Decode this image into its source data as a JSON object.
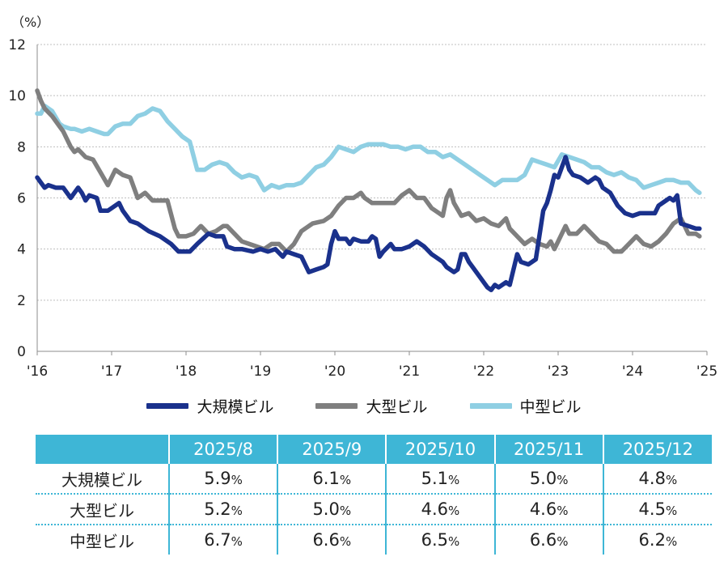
{
  "chart_data": {
    "type": "line",
    "y_unit_label": "（%）",
    "ylim": [
      0,
      12
    ],
    "y_ticks": [
      0,
      2,
      4,
      6,
      8,
      10,
      12
    ],
    "x_ticks": [
      "'16",
      "'17",
      "'18",
      "'19",
      "'20",
      "'21",
      "'22",
      "'23",
      "'24",
      "'25"
    ],
    "x_range": [
      0,
      9
    ],
    "grid": "horizontal dotted",
    "legend_position": "bottom",
    "series": [
      {
        "name": "大規模ビル",
        "color": "#1a318c",
        "points": [
          [
            0.0,
            6.8
          ],
          [
            0.05,
            6.6
          ],
          [
            0.1,
            6.4
          ],
          [
            0.15,
            6.5
          ],
          [
            0.25,
            6.4
          ],
          [
            0.35,
            6.4
          ],
          [
            0.45,
            6.0
          ],
          [
            0.55,
            6.4
          ],
          [
            0.6,
            6.2
          ],
          [
            0.65,
            5.9
          ],
          [
            0.7,
            6.1
          ],
          [
            0.8,
            6.0
          ],
          [
            0.85,
            5.5
          ],
          [
            0.95,
            5.5
          ],
          [
            1.0,
            5.6
          ],
          [
            1.1,
            5.8
          ],
          [
            1.15,
            5.5
          ],
          [
            1.25,
            5.1
          ],
          [
            1.35,
            5.0
          ],
          [
            1.5,
            4.7
          ],
          [
            1.65,
            4.5
          ],
          [
            1.8,
            4.2
          ],
          [
            1.9,
            3.9
          ],
          [
            2.05,
            3.9
          ],
          [
            2.15,
            4.2
          ],
          [
            2.3,
            4.6
          ],
          [
            2.4,
            4.5
          ],
          [
            2.5,
            4.5
          ],
          [
            2.55,
            4.1
          ],
          [
            2.65,
            4.0
          ],
          [
            2.75,
            4.0
          ],
          [
            2.9,
            3.9
          ],
          [
            3.0,
            4.0
          ],
          [
            3.1,
            3.9
          ],
          [
            3.2,
            4.0
          ],
          [
            3.3,
            3.7
          ],
          [
            3.35,
            3.9
          ],
          [
            3.45,
            3.8
          ],
          [
            3.55,
            3.7
          ],
          [
            3.65,
            3.1
          ],
          [
            3.75,
            3.2
          ],
          [
            3.85,
            3.3
          ],
          [
            3.9,
            3.4
          ],
          [
            3.95,
            4.2
          ],
          [
            4.0,
            4.7
          ],
          [
            4.05,
            4.4
          ],
          [
            4.15,
            4.4
          ],
          [
            4.2,
            4.2
          ],
          [
            4.25,
            4.4
          ],
          [
            4.35,
            4.3
          ],
          [
            4.45,
            4.3
          ],
          [
            4.5,
            4.5
          ],
          [
            4.55,
            4.4
          ],
          [
            4.6,
            3.7
          ],
          [
            4.65,
            3.9
          ],
          [
            4.75,
            4.2
          ],
          [
            4.8,
            4.0
          ],
          [
            4.9,
            4.0
          ],
          [
            5.0,
            4.1
          ],
          [
            5.1,
            4.3
          ],
          [
            5.2,
            4.1
          ],
          [
            5.3,
            3.8
          ],
          [
            5.35,
            3.7
          ],
          [
            5.45,
            3.5
          ],
          [
            5.5,
            3.3
          ],
          [
            5.6,
            3.1
          ],
          [
            5.65,
            3.2
          ],
          [
            5.7,
            3.8
          ],
          [
            5.75,
            3.8
          ],
          [
            5.8,
            3.5
          ],
          [
            5.85,
            3.3
          ],
          [
            5.95,
            2.9
          ],
          [
            6.05,
            2.5
          ],
          [
            6.1,
            2.4
          ],
          [
            6.15,
            2.6
          ],
          [
            6.2,
            2.5
          ],
          [
            6.3,
            2.7
          ],
          [
            6.35,
            2.6
          ],
          [
            6.45,
            3.8
          ],
          [
            6.5,
            3.5
          ],
          [
            6.6,
            3.4
          ],
          [
            6.7,
            3.6
          ],
          [
            6.8,
            5.5
          ],
          [
            6.85,
            5.8
          ],
          [
            6.9,
            6.3
          ],
          [
            6.95,
            6.9
          ],
          [
            7.0,
            6.8
          ],
          [
            7.05,
            7.2
          ],
          [
            7.1,
            7.6
          ],
          [
            7.15,
            7.1
          ],
          [
            7.2,
            6.9
          ],
          [
            7.3,
            6.8
          ],
          [
            7.4,
            6.6
          ],
          [
            7.5,
            6.8
          ],
          [
            7.55,
            6.7
          ],
          [
            7.6,
            6.4
          ],
          [
            7.7,
            6.2
          ],
          [
            7.8,
            5.7
          ],
          [
            7.9,
            5.4
          ],
          [
            8.0,
            5.3
          ],
          [
            8.1,
            5.4
          ],
          [
            8.2,
            5.4
          ],
          [
            8.3,
            5.4
          ],
          [
            8.35,
            5.7
          ],
          [
            8.45,
            5.9
          ],
          [
            8.5,
            6.0
          ],
          [
            8.55,
            5.9
          ],
          [
            8.6,
            6.1
          ],
          [
            8.65,
            5.0
          ],
          [
            8.75,
            4.9
          ],
          [
            8.85,
            4.8
          ],
          [
            8.9,
            4.8
          ]
        ]
      },
      {
        "name": "大型ビル",
        "color": "#7f7f7f",
        "points": [
          [
            0.0,
            10.2
          ],
          [
            0.05,
            9.8
          ],
          [
            0.1,
            9.5
          ],
          [
            0.2,
            9.2
          ],
          [
            0.3,
            8.8
          ],
          [
            0.35,
            8.6
          ],
          [
            0.45,
            8.0
          ],
          [
            0.5,
            7.8
          ],
          [
            0.55,
            7.9
          ],
          [
            0.65,
            7.6
          ],
          [
            0.75,
            7.5
          ],
          [
            0.85,
            7.0
          ],
          [
            0.95,
            6.5
          ],
          [
            1.0,
            6.8
          ],
          [
            1.05,
            7.1
          ],
          [
            1.15,
            6.9
          ],
          [
            1.25,
            6.8
          ],
          [
            1.35,
            6.0
          ],
          [
            1.45,
            6.2
          ],
          [
            1.55,
            5.9
          ],
          [
            1.65,
            5.9
          ],
          [
            1.75,
            5.9
          ],
          [
            1.85,
            4.8
          ],
          [
            1.9,
            4.5
          ],
          [
            2.0,
            4.5
          ],
          [
            2.1,
            4.6
          ],
          [
            2.2,
            4.9
          ],
          [
            2.3,
            4.6
          ],
          [
            2.4,
            4.7
          ],
          [
            2.5,
            4.9
          ],
          [
            2.55,
            4.9
          ],
          [
            2.65,
            4.6
          ],
          [
            2.75,
            4.3
          ],
          [
            2.85,
            4.2
          ],
          [
            2.95,
            4.1
          ],
          [
            3.05,
            4.0
          ],
          [
            3.15,
            4.2
          ],
          [
            3.25,
            4.2
          ],
          [
            3.35,
            3.9
          ],
          [
            3.45,
            4.2
          ],
          [
            3.55,
            4.7
          ],
          [
            3.65,
            4.9
          ],
          [
            3.7,
            5.0
          ],
          [
            3.85,
            5.1
          ],
          [
            3.95,
            5.3
          ],
          [
            4.05,
            5.7
          ],
          [
            4.15,
            6.0
          ],
          [
            4.25,
            6.0
          ],
          [
            4.35,
            6.2
          ],
          [
            4.4,
            6.0
          ],
          [
            4.5,
            5.8
          ],
          [
            4.6,
            5.8
          ],
          [
            4.7,
            5.8
          ],
          [
            4.8,
            5.8
          ],
          [
            4.9,
            6.1
          ],
          [
            5.0,
            6.3
          ],
          [
            5.1,
            6.0
          ],
          [
            5.2,
            6.0
          ],
          [
            5.3,
            5.6
          ],
          [
            5.4,
            5.4
          ],
          [
            5.45,
            5.3
          ],
          [
            5.5,
            6.0
          ],
          [
            5.55,
            6.3
          ],
          [
            5.6,
            5.8
          ],
          [
            5.7,
            5.3
          ],
          [
            5.8,
            5.4
          ],
          [
            5.9,
            5.1
          ],
          [
            6.0,
            5.2
          ],
          [
            6.1,
            5.0
          ],
          [
            6.2,
            4.9
          ],
          [
            6.3,
            5.2
          ],
          [
            6.35,
            4.8
          ],
          [
            6.45,
            4.5
          ],
          [
            6.55,
            4.2
          ],
          [
            6.65,
            4.4
          ],
          [
            6.75,
            4.2
          ],
          [
            6.85,
            4.1
          ],
          [
            6.9,
            4.3
          ],
          [
            6.95,
            4.0
          ],
          [
            7.0,
            4.3
          ],
          [
            7.05,
            4.6
          ],
          [
            7.1,
            4.9
          ],
          [
            7.15,
            4.6
          ],
          [
            7.25,
            4.6
          ],
          [
            7.35,
            4.9
          ],
          [
            7.45,
            4.6
          ],
          [
            7.55,
            4.3
          ],
          [
            7.65,
            4.2
          ],
          [
            7.75,
            3.9
          ],
          [
            7.85,
            3.9
          ],
          [
            7.95,
            4.2
          ],
          [
            8.05,
            4.5
          ],
          [
            8.15,
            4.2
          ],
          [
            8.25,
            4.1
          ],
          [
            8.35,
            4.3
          ],
          [
            8.45,
            4.6
          ],
          [
            8.55,
            5.0
          ],
          [
            8.65,
            5.2
          ],
          [
            8.7,
            4.9
          ],
          [
            8.75,
            4.6
          ],
          [
            8.85,
            4.6
          ],
          [
            8.9,
            4.5
          ]
        ]
      },
      {
        "name": "中型ビル",
        "color": "#8fcfe3",
        "points": [
          [
            0.0,
            9.3
          ],
          [
            0.05,
            9.3
          ],
          [
            0.1,
            9.6
          ],
          [
            0.2,
            9.4
          ],
          [
            0.3,
            8.9
          ],
          [
            0.35,
            8.8
          ],
          [
            0.45,
            8.7
          ],
          [
            0.5,
            8.7
          ],
          [
            0.6,
            8.6
          ],
          [
            0.7,
            8.7
          ],
          [
            0.8,
            8.6
          ],
          [
            0.9,
            8.5
          ],
          [
            0.95,
            8.5
          ],
          [
            1.05,
            8.8
          ],
          [
            1.15,
            8.9
          ],
          [
            1.25,
            8.9
          ],
          [
            1.35,
            9.2
          ],
          [
            1.45,
            9.3
          ],
          [
            1.55,
            9.5
          ],
          [
            1.65,
            9.4
          ],
          [
            1.75,
            9.0
          ],
          [
            1.85,
            8.7
          ],
          [
            1.95,
            8.4
          ],
          [
            2.05,
            8.2
          ],
          [
            2.15,
            7.1
          ],
          [
            2.25,
            7.1
          ],
          [
            2.35,
            7.3
          ],
          [
            2.45,
            7.4
          ],
          [
            2.55,
            7.3
          ],
          [
            2.65,
            7.0
          ],
          [
            2.75,
            6.8
          ],
          [
            2.85,
            6.9
          ],
          [
            2.95,
            6.8
          ],
          [
            3.05,
            6.3
          ],
          [
            3.15,
            6.5
          ],
          [
            3.25,
            6.4
          ],
          [
            3.35,
            6.5
          ],
          [
            3.45,
            6.5
          ],
          [
            3.55,
            6.6
          ],
          [
            3.65,
            6.9
          ],
          [
            3.75,
            7.2
          ],
          [
            3.85,
            7.3
          ],
          [
            3.95,
            7.6
          ],
          [
            4.05,
            8.0
          ],
          [
            4.15,
            7.9
          ],
          [
            4.25,
            7.8
          ],
          [
            4.35,
            8.0
          ],
          [
            4.45,
            8.1
          ],
          [
            4.55,
            8.1
          ],
          [
            4.65,
            8.1
          ],
          [
            4.75,
            8.0
          ],
          [
            4.85,
            8.0
          ],
          [
            4.95,
            7.9
          ],
          [
            5.05,
            8.0
          ],
          [
            5.15,
            8.0
          ],
          [
            5.25,
            7.8
          ],
          [
            5.35,
            7.8
          ],
          [
            5.45,
            7.6
          ],
          [
            5.55,
            7.7
          ],
          [
            5.65,
            7.5
          ],
          [
            5.75,
            7.3
          ],
          [
            5.85,
            7.1
          ],
          [
            5.95,
            6.9
          ],
          [
            6.05,
            6.7
          ],
          [
            6.15,
            6.5
          ],
          [
            6.25,
            6.7
          ],
          [
            6.35,
            6.7
          ],
          [
            6.45,
            6.7
          ],
          [
            6.55,
            6.9
          ],
          [
            6.65,
            7.5
          ],
          [
            6.75,
            7.4
          ],
          [
            6.85,
            7.3
          ],
          [
            6.95,
            7.2
          ],
          [
            7.05,
            7.7
          ],
          [
            7.15,
            7.6
          ],
          [
            7.25,
            7.5
          ],
          [
            7.35,
            7.4
          ],
          [
            7.45,
            7.2
          ],
          [
            7.55,
            7.2
          ],
          [
            7.65,
            7.0
          ],
          [
            7.75,
            6.9
          ],
          [
            7.85,
            7.0
          ],
          [
            7.95,
            6.8
          ],
          [
            8.05,
            6.7
          ],
          [
            8.15,
            6.4
          ],
          [
            8.25,
            6.5
          ],
          [
            8.35,
            6.6
          ],
          [
            8.45,
            6.7
          ],
          [
            8.55,
            6.7
          ],
          [
            8.65,
            6.6
          ],
          [
            8.75,
            6.6
          ],
          [
            8.85,
            6.3
          ],
          [
            8.9,
            6.2
          ]
        ]
      }
    ]
  },
  "table": {
    "headers": [
      "",
      "2025/8",
      "2025/9",
      "2025/10",
      "2025/11",
      "2025/12"
    ],
    "unit": "%",
    "rows": [
      {
        "label": "大規模ビル",
        "values": [
          "5.9",
          "6.1",
          "5.1",
          "5.0",
          "4.8"
        ]
      },
      {
        "label": "大型ビル",
        "values": [
          "5.2",
          "5.0",
          "4.6",
          "4.6",
          "4.5"
        ]
      },
      {
        "label": "中型ビル",
        "values": [
          "6.7",
          "6.6",
          "6.5",
          "6.6",
          "6.2"
        ]
      }
    ]
  }
}
